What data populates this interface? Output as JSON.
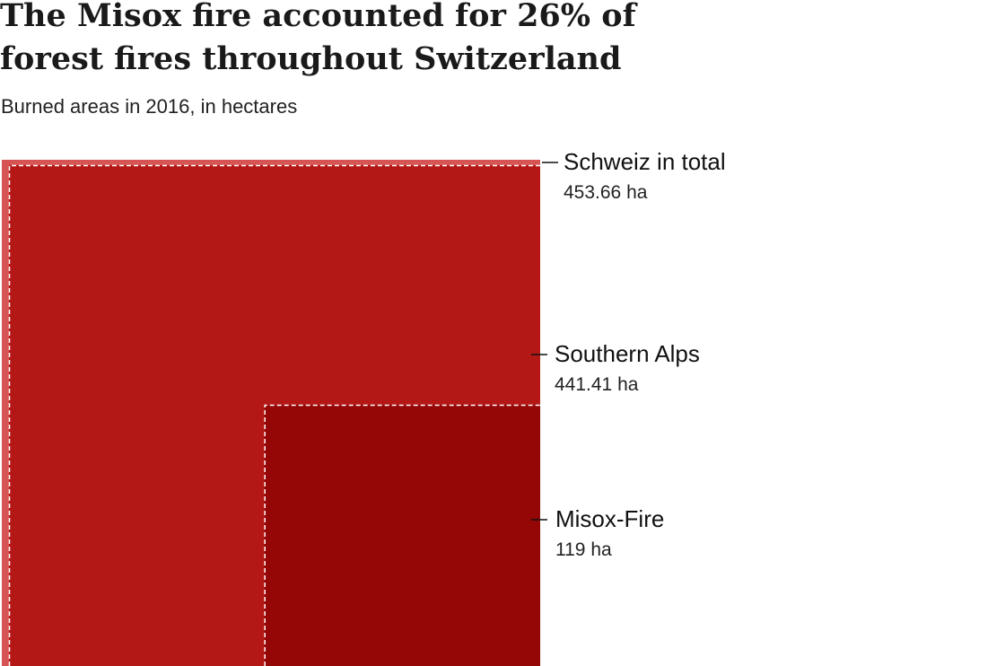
{
  "title": "The Misox fire accounted for 26% of forest fires throughout Switzerland",
  "subtitle": "Burned areas in 2016, in hectares",
  "colors": {
    "total": "#d65454",
    "southern_alps": "#b31817",
    "misox": "#950606",
    "outline": "#ffffff"
  },
  "chart_data": {
    "type": "area-squares",
    "title": "The Misox fire accounted for 26% of forest fires throughout Switzerland",
    "subtitle": "Burned areas in 2016, in hectares",
    "unit": "ha",
    "series": [
      {
        "name": "Schweiz in total",
        "value": 453.66,
        "value_label": "453.66 ha"
      },
      {
        "name": "Southern Alps",
        "value": 441.41,
        "value_label": "441.41 ha"
      },
      {
        "name": "Misox-Fire",
        "value": 119,
        "value_label": "119 ha"
      }
    ]
  }
}
